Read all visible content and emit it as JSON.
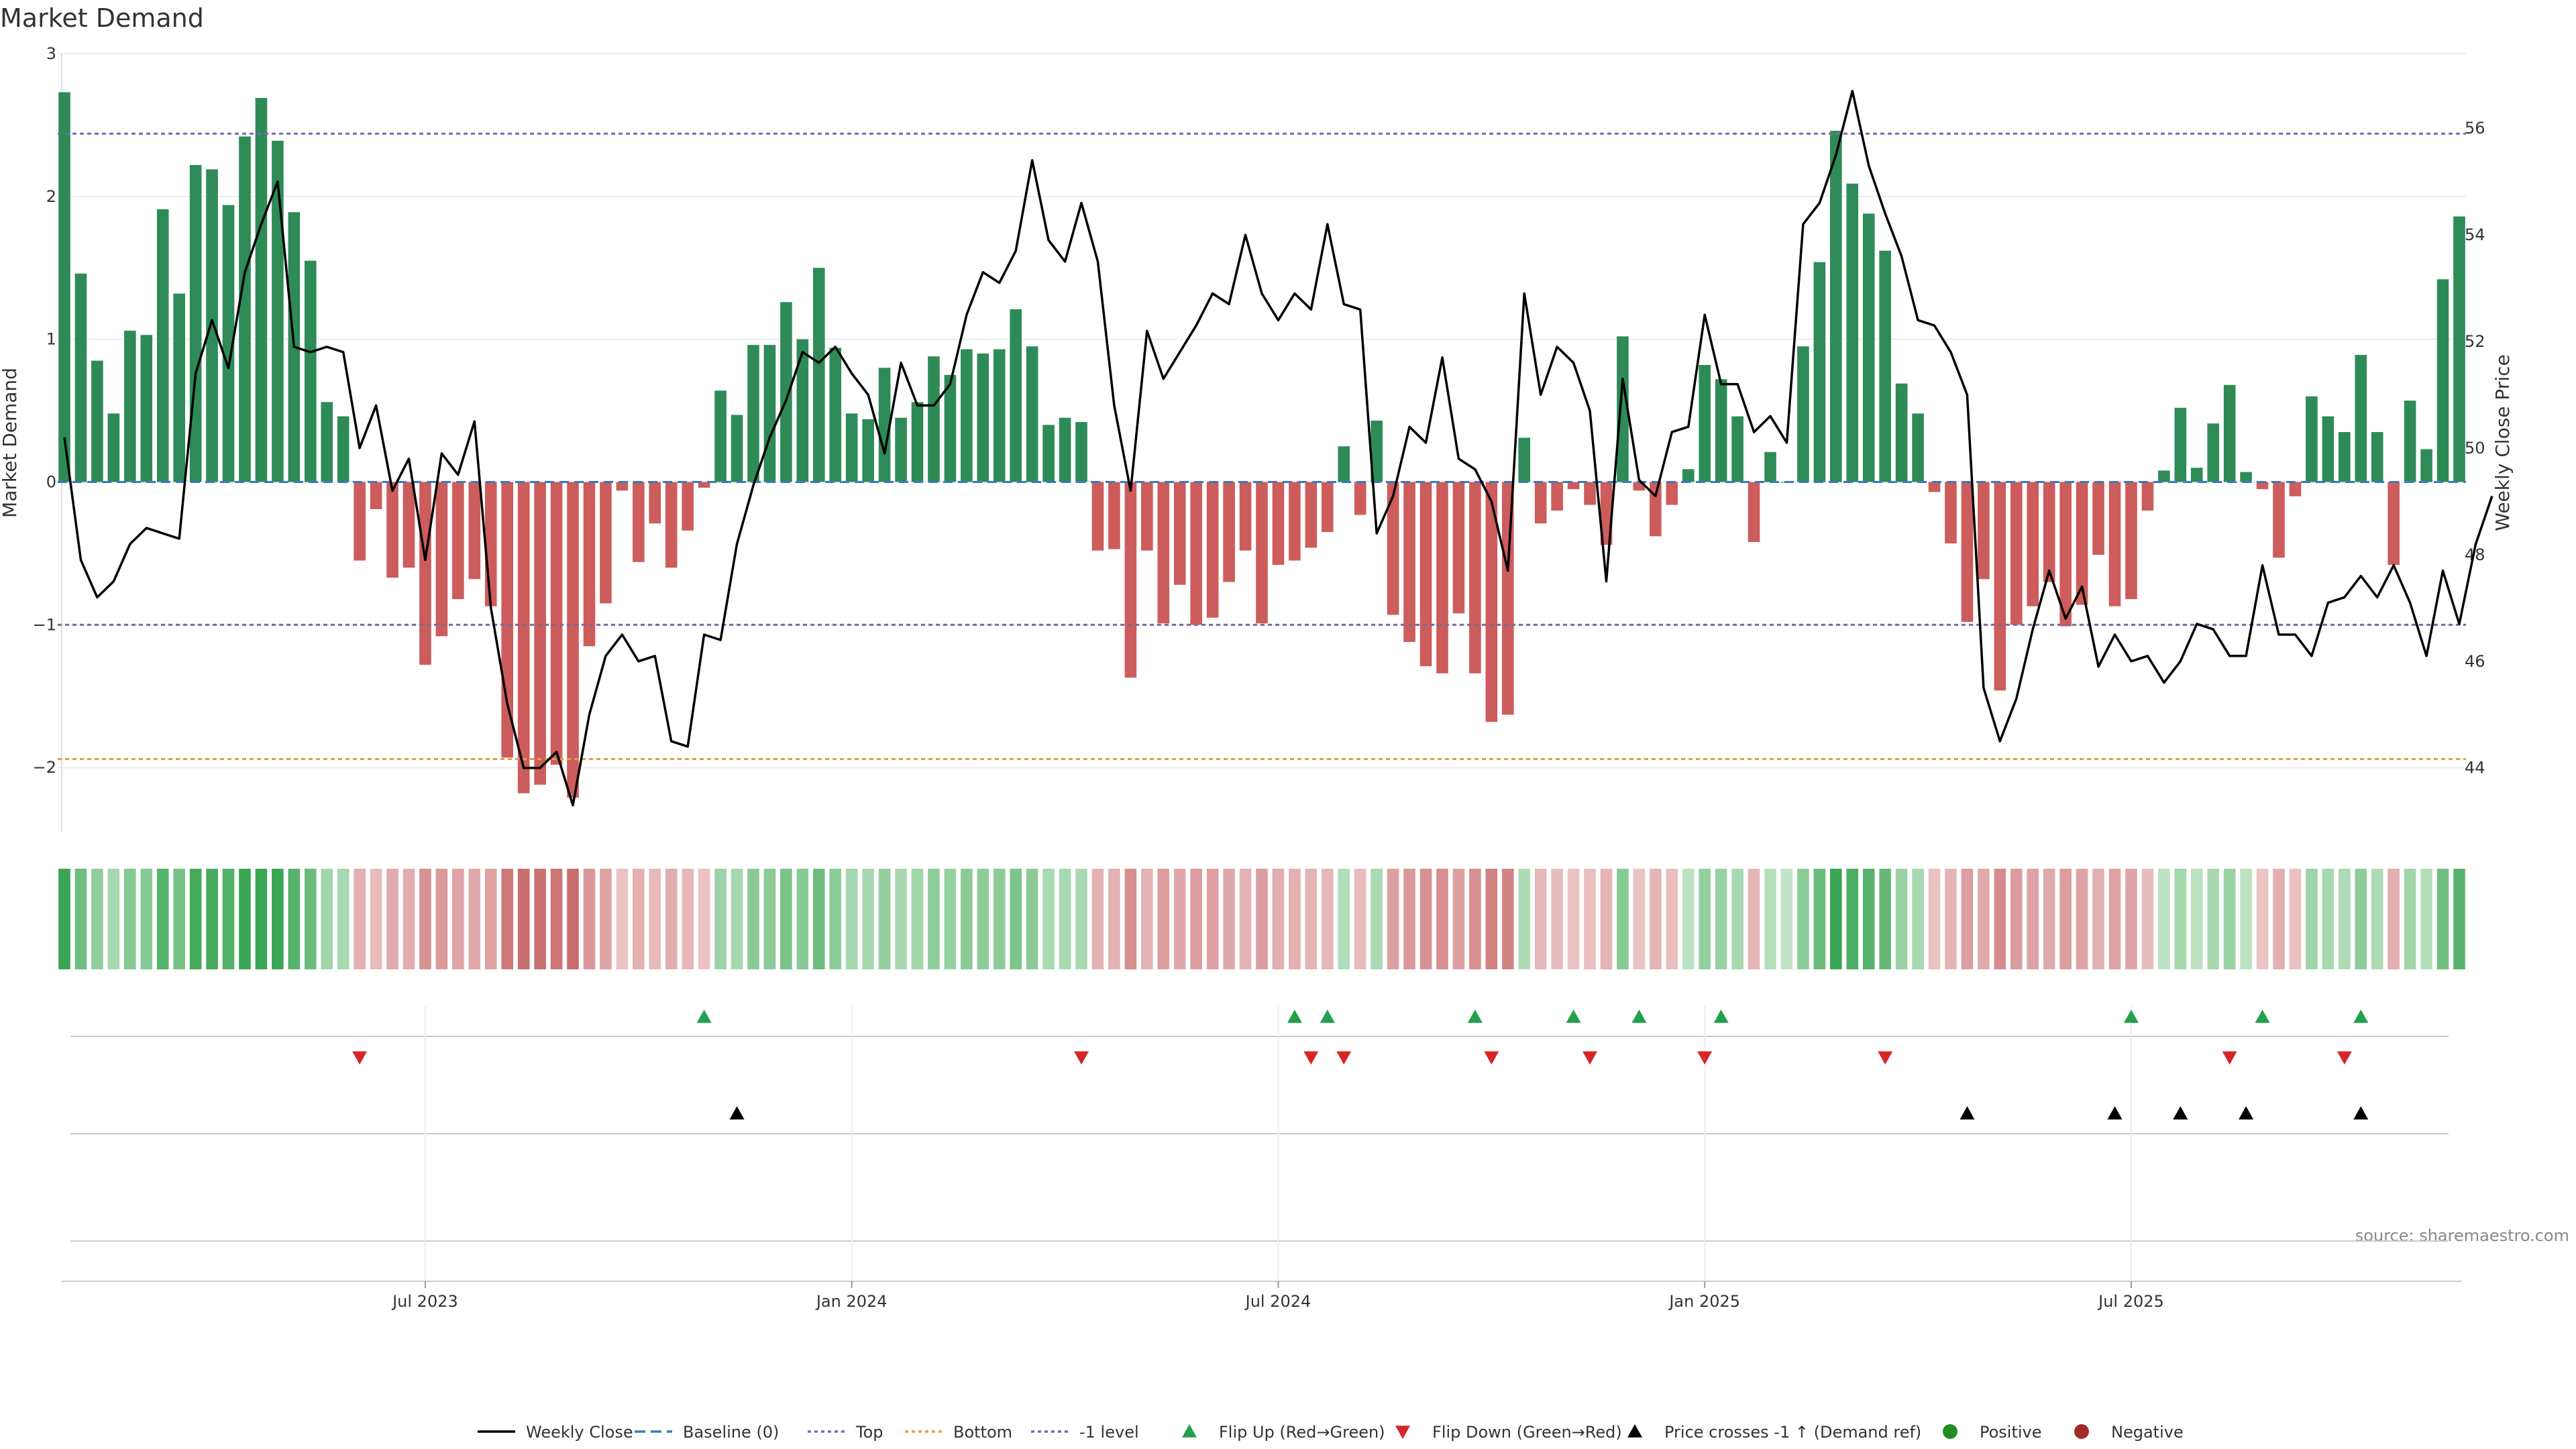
{
  "chart_data": {
    "type": "bar",
    "title": "Market Demand",
    "ylabel_left": "Market Demand",
    "ylabel_right": "Weekly Close Price",
    "source": "source: sharemaestro.com",
    "ylim_left": [
      -2.45,
      3.0
    ],
    "ylim_right": [
      42.8,
      57.4
    ],
    "left_ticks": [
      {
        "value": 3,
        "label": "3"
      },
      {
        "value": 2,
        "label": "2"
      },
      {
        "value": 1,
        "label": "1"
      },
      {
        "value": 0,
        "label": "0"
      },
      {
        "value": -1,
        "label": "−1"
      },
      {
        "value": -2,
        "label": "−2"
      }
    ],
    "right_ticks": [
      {
        "value": 56,
        "label": "56"
      },
      {
        "value": 54,
        "label": "54"
      },
      {
        "value": 52,
        "label": "52"
      },
      {
        "value": 50,
        "label": "50"
      },
      {
        "value": 48,
        "label": "48"
      },
      {
        "value": 46,
        "label": "46"
      },
      {
        "value": 44,
        "label": "44"
      }
    ],
    "x_ticks": [
      {
        "index": 22,
        "label": "Jul 2023"
      },
      {
        "index": 48,
        "label": "Jan 2024"
      },
      {
        "index": 74,
        "label": "Jul 2024"
      },
      {
        "index": 100,
        "label": "Jan 2025"
      },
      {
        "index": 126,
        "label": "Jul 2025"
      }
    ],
    "reference_lines": [
      {
        "name": "Top",
        "value": 2.44,
        "color": "#7b68b0"
      },
      {
        "name": "Bottom",
        "value": -1.94,
        "color": "#e0a040"
      },
      {
        "name": "-1 level",
        "value": -1.0,
        "color": "#7a6a9a"
      },
      {
        "name": "Baseline (0)",
        "value": 0,
        "color": "#3a78c0"
      }
    ],
    "demand": [
      2.73,
      1.46,
      0.85,
      0.48,
      1.06,
      1.03,
      1.91,
      1.32,
      2.22,
      2.19,
      1.94,
      2.42,
      2.69,
      2.39,
      1.89,
      1.55,
      0.56,
      0.46,
      -0.55,
      -0.19,
      -0.67,
      -0.6,
      -1.28,
      -1.08,
      -0.82,
      -0.68,
      -0.87,
      -1.93,
      -2.18,
      -2.12,
      -1.98,
      -2.21,
      -1.15,
      -0.85,
      -0.06,
      -0.56,
      -0.29,
      -0.6,
      -0.34,
      -0.04,
      0.64,
      0.47,
      0.96,
      0.96,
      1.26,
      1.0,
      1.5,
      0.94,
      0.48,
      0.44,
      0.8,
      0.45,
      0.56,
      0.88,
      0.75,
      0.93,
      0.9,
      0.93,
      1.21,
      0.95,
      0.4,
      0.45,
      0.42,
      -0.48,
      -0.47,
      -1.37,
      -0.48,
      -0.99,
      -0.72,
      -1.0,
      -0.95,
      -0.7,
      -0.48,
      -0.99,
      -0.58,
      -0.55,
      -0.46,
      -0.35,
      0.25,
      -0.23,
      0.43,
      -0.93,
      -1.12,
      -1.29,
      -1.34,
      -0.92,
      -1.34,
      -1.68,
      -1.63,
      0.31,
      -0.29,
      -0.2,
      -0.05,
      -0.16,
      -0.44,
      1.02,
      -0.06,
      -0.38,
      -0.16,
      0.09,
      0.82,
      0.72,
      0.46,
      -0.42,
      0.21,
      0.0,
      0.95,
      1.54,
      2.46,
      2.09,
      1.88,
      1.62,
      0.69,
      0.48,
      -0.07,
      -0.43,
      -0.98,
      -0.68,
      -1.46,
      -1.0,
      -0.87,
      -0.7,
      -1.01,
      -0.86,
      -0.51,
      -0.87,
      -0.82,
      -0.2,
      0.08,
      0.52,
      0.1,
      0.41,
      0.68,
      0.07,
      -0.05,
      -0.53,
      -0.1,
      0.6,
      0.46,
      0.35,
      0.89,
      0.35,
      -0.58,
      0.57,
      0.23,
      1.42,
      1.86
    ],
    "weekly_close": [
      50.2,
      47.9,
      47.2,
      47.5,
      48.2,
      48.5,
      48.4,
      48.3,
      51.4,
      52.4,
      51.5,
      53.3,
      54.2,
      55.0,
      51.9,
      51.8,
      51.9,
      51.8,
      50.0,
      50.8,
      49.2,
      49.8,
      47.9,
      49.9,
      49.5,
      50.5,
      47.0,
      45.2,
      44.0,
      44.0,
      44.3,
      43.3,
      45.0,
      46.1,
      46.5,
      46.0,
      46.1,
      44.5,
      44.4,
      46.5,
      46.4,
      48.2,
      49.3,
      50.2,
      50.9,
      51.8,
      51.6,
      51.9,
      51.4,
      51.0,
      49.9,
      51.6,
      50.8,
      50.8,
      51.2,
      52.5,
      53.3,
      53.1,
      53.7,
      55.4,
      53.9,
      53.5,
      54.6,
      53.5,
      50.8,
      49.2,
      52.2,
      51.3,
      51.8,
      52.3,
      52.9,
      52.7,
      54.0,
      52.9,
      52.4,
      52.9,
      52.6,
      54.2,
      52.7,
      52.6,
      48.4,
      49.1,
      50.4,
      50.1,
      51.7,
      49.8,
      49.6,
      49.0,
      47.7,
      52.9,
      51.0,
      51.9,
      51.6,
      50.7,
      47.5,
      51.3,
      49.4,
      49.1,
      50.3,
      50.4,
      52.5,
      51.2,
      51.2,
      50.3,
      50.6,
      50.1,
      54.2,
      54.6,
      55.5,
      56.7,
      55.3,
      54.4,
      53.6,
      52.4,
      52.3,
      51.8,
      51.0,
      45.5,
      44.5,
      45.3,
      46.6,
      47.7,
      46.8,
      47.4,
      45.9,
      46.5,
      46.0,
      46.1,
      45.6,
      46.0,
      46.7,
      46.6,
      46.1,
      46.1,
      47.8,
      46.5,
      46.5,
      46.1,
      47.1,
      47.2,
      47.6,
      47.2,
      47.8,
      47.1,
      46.1,
      47.7,
      46.7,
      48.2,
      49.1
    ],
    "flip_up_indices": [
      39,
      75,
      77,
      86,
      92,
      96,
      101,
      126,
      134,
      140
    ],
    "flip_down_indices": [
      18,
      62,
      76,
      78,
      87,
      93,
      100,
      111,
      132,
      139
    ],
    "price_cross_indices": [
      41,
      116,
      125,
      129,
      133,
      140
    ],
    "colors": {
      "positive": "#2e8b57",
      "negative": "#cd5c5c",
      "price_line": "#000000",
      "flip_up": "#22a04b",
      "flip_down": "#d62728",
      "price_cross": "#000000",
      "positive_dot": "#228b22",
      "negative_dot": "#a52a2a"
    },
    "legend": [
      {
        "label": "Weekly Close",
        "kind": "line",
        "color": "#000000"
      },
      {
        "label": "Baseline (0)",
        "kind": "dash",
        "color": "#3a78c0"
      },
      {
        "label": "Top",
        "kind": "dot",
        "color": "#7b68b0"
      },
      {
        "label": "Bottom",
        "kind": "dot",
        "color": "#e0a040"
      },
      {
        "label": "-1 level",
        "kind": "dot",
        "color": "#7a6a9a"
      },
      {
        "label": "Flip Up (Red→Green)",
        "kind": "tri-up",
        "color": "#22a04b"
      },
      {
        "label": "Flip Down (Green→Red)",
        "kind": "tri-down",
        "color": "#d62728"
      },
      {
        "label": "Price crosses -1 ↑ (Demand ref)",
        "kind": "tri-up",
        "color": "#000000"
      },
      {
        "label": "Positive",
        "kind": "circle",
        "color": "#228b22"
      },
      {
        "label": "Negative",
        "kind": "circle",
        "color": "#a52a2a"
      }
    ]
  }
}
